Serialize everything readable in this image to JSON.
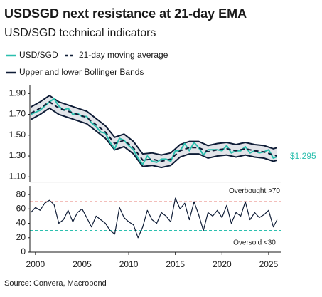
{
  "chart_data": [
    {
      "type": "line",
      "title": "USDSGD next resistance at 21-day EMA",
      "subtitle": "USD/SGD technical indicators",
      "source": "Source: Convera, Macrobond",
      "xlim": [
        1999.4,
        2026.3
      ],
      "ylim": [
        1.05,
        1.95
      ],
      "yticks": [
        {
          "value": 1.9,
          "label": "1.90"
        },
        {
          "value": 1.7,
          "label": "1.70"
        },
        {
          "value": 1.5,
          "label": "1.50"
        },
        {
          "value": 1.3,
          "label": "1.30"
        },
        {
          "value": 1.1,
          "label": "1.10"
        }
      ],
      "series": [
        {
          "name": "USD/SGD",
          "color": "#2bbfae",
          "style": "solid",
          "x": [
            1999.5,
            2000,
            2000.5,
            2001,
            2001.5,
            2002,
            2002.5,
            2003,
            2003.5,
            2004,
            2004.5,
            2005,
            2005.5,
            2006,
            2006.5,
            2007,
            2007.5,
            2008,
            2008.5,
            2009,
            2009.5,
            2010,
            2010.5,
            2011,
            2011.5,
            2012,
            2012.5,
            2013,
            2013.5,
            2014,
            2014.5,
            2015,
            2015.5,
            2016,
            2016.5,
            2017,
            2017.5,
            2018,
            2018.5,
            2019,
            2019.5,
            2020,
            2020.5,
            2021,
            2021.5,
            2022,
            2022.5,
            2023,
            2023.5,
            2024,
            2024.5,
            2025,
            2025.5,
            2025.9
          ],
          "values": [
            1.7,
            1.72,
            1.74,
            1.78,
            1.82,
            1.85,
            1.78,
            1.74,
            1.76,
            1.7,
            1.71,
            1.68,
            1.68,
            1.62,
            1.58,
            1.53,
            1.52,
            1.43,
            1.37,
            1.47,
            1.45,
            1.4,
            1.36,
            1.28,
            1.22,
            1.3,
            1.25,
            1.24,
            1.27,
            1.27,
            1.25,
            1.35,
            1.35,
            1.42,
            1.35,
            1.43,
            1.38,
            1.31,
            1.36,
            1.36,
            1.36,
            1.35,
            1.4,
            1.33,
            1.35,
            1.35,
            1.39,
            1.33,
            1.35,
            1.33,
            1.34,
            1.36,
            1.28,
            1.295
          ],
          "value_labels": [
            null,
            null,
            null,
            null,
            null,
            null,
            null,
            null,
            null,
            null,
            null,
            null,
            null,
            null,
            null,
            null,
            null,
            null,
            null,
            null,
            null,
            null,
            null,
            null,
            null,
            null,
            null,
            null,
            null,
            null,
            null,
            null,
            null,
            null,
            null,
            null,
            null,
            null,
            null,
            null,
            null,
            null,
            null,
            null,
            null,
            null,
            null,
            null,
            null,
            null,
            null,
            null,
            null,
            "$1.295"
          ]
        },
        {
          "name": "21-day moving average",
          "color": "#0e1c36",
          "style": "dashed",
          "x": [
            1999.5,
            2000.5,
            2001.5,
            2002.5,
            2003.5,
            2004.5,
            2005.5,
            2006.5,
            2007.5,
            2008.5,
            2009.5,
            2010.5,
            2011.5,
            2012.5,
            2013.5,
            2014.5,
            2015.5,
            2016.5,
            2017.5,
            2018.5,
            2019.5,
            2020.5,
            2021.5,
            2022.5,
            2023.5,
            2024.5,
            2025.5,
            2025.9
          ],
          "values": [
            1.71,
            1.76,
            1.82,
            1.76,
            1.73,
            1.7,
            1.67,
            1.6,
            1.53,
            1.42,
            1.45,
            1.38,
            1.26,
            1.27,
            1.25,
            1.27,
            1.35,
            1.38,
            1.38,
            1.34,
            1.36,
            1.37,
            1.35,
            1.37,
            1.35,
            1.34,
            1.31,
            1.3
          ]
        },
        {
          "name": "Upper and lower Bollinger Bands",
          "color": "#0e1c36",
          "style": "band",
          "fill": "#e2e4e9",
          "x": [
            1999.5,
            2000.5,
            2001.5,
            2002.5,
            2003.5,
            2004.5,
            2005.5,
            2006.5,
            2007.5,
            2008.5,
            2009.5,
            2010.5,
            2011.5,
            2012.5,
            2013.5,
            2014.5,
            2015.5,
            2016.5,
            2017.5,
            2018.5,
            2019.5,
            2020.5,
            2021.5,
            2022.5,
            2023.5,
            2024.5,
            2025.5,
            2025.9
          ],
          "upper": [
            1.77,
            1.82,
            1.88,
            1.82,
            1.79,
            1.76,
            1.73,
            1.66,
            1.59,
            1.48,
            1.51,
            1.44,
            1.32,
            1.33,
            1.31,
            1.33,
            1.41,
            1.44,
            1.44,
            1.4,
            1.42,
            1.43,
            1.41,
            1.43,
            1.41,
            1.4,
            1.37,
            1.38
          ],
          "lower": [
            1.65,
            1.7,
            1.76,
            1.7,
            1.67,
            1.64,
            1.61,
            1.54,
            1.47,
            1.36,
            1.39,
            1.32,
            1.2,
            1.21,
            1.19,
            1.21,
            1.29,
            1.32,
            1.32,
            1.28,
            1.3,
            1.31,
            1.29,
            1.31,
            1.29,
            1.28,
            1.25,
            1.26
          ]
        }
      ]
    },
    {
      "type": "line",
      "xlim": [
        1999.4,
        2026.3
      ],
      "ylim": [
        0,
        88
      ],
      "xticks": [
        2000,
        2005,
        2010,
        2015,
        2020,
        2025
      ],
      "yticks": [
        80,
        60,
        40,
        20,
        0
      ],
      "thresholds": [
        {
          "value": 70,
          "label": "Overbought >70",
          "color": "#e0524a"
        },
        {
          "value": 30,
          "label": "Oversold <30",
          "color": "#2bbfae"
        }
      ],
      "series": [
        {
          "color": "#0e1c36",
          "x": [
            1999.5,
            2000,
            2000.5,
            2001,
            2001.5,
            2002,
            2002.5,
            2003,
            2003.5,
            2004,
            2004.5,
            2005,
            2005.5,
            2006,
            2006.5,
            2007,
            2007.5,
            2008,
            2008.5,
            2009,
            2009.5,
            2010,
            2010.5,
            2011,
            2011.5,
            2012,
            2012.5,
            2013,
            2013.5,
            2014,
            2014.5,
            2015,
            2015.5,
            2016,
            2016.5,
            2017,
            2017.5,
            2018,
            2018.5,
            2019,
            2019.5,
            2020,
            2020.5,
            2021,
            2021.5,
            2022,
            2022.5,
            2023,
            2023.5,
            2024,
            2024.5,
            2025,
            2025.5,
            2025.9
          ],
          "values": [
            55,
            62,
            58,
            68,
            72,
            66,
            40,
            45,
            58,
            42,
            55,
            60,
            48,
            35,
            50,
            45,
            40,
            30,
            25,
            62,
            48,
            42,
            38,
            20,
            35,
            58,
            45,
            40,
            55,
            50,
            42,
            75,
            60,
            68,
            45,
            70,
            52,
            30,
            55,
            50,
            58,
            48,
            65,
            40,
            55,
            50,
            70,
            45,
            55,
            48,
            52,
            58,
            35,
            45
          ]
        }
      ]
    }
  ]
}
